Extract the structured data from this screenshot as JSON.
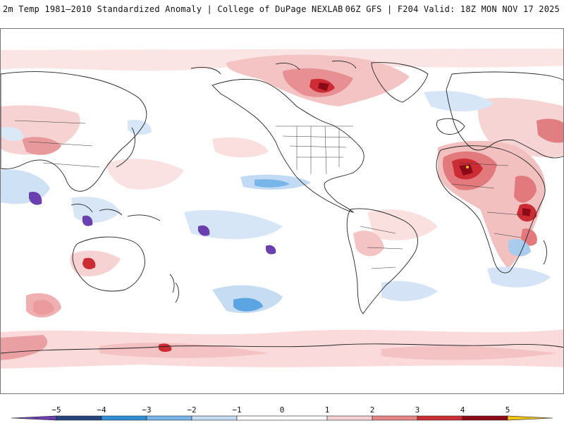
{
  "header": {
    "title_left": "2m Temp 1981–2010 Standardized Anomaly | College of DuPage NEXLAB",
    "title_right": "06Z GFS | F204 Valid: 18Z MON NOV 17 2025"
  },
  "map": {
    "projection": "global equirectangular, Pacific-centered",
    "variable": "2m temperature standardized anomaly"
  },
  "colorbar": {
    "ticks": [
      "−5",
      "−4",
      "−3",
      "−2",
      "−1",
      "0",
      "1",
      "2",
      "3",
      "4",
      "5"
    ],
    "range": [
      -6,
      6
    ],
    "bins": [
      {
        "from": -6,
        "to": -5,
        "color": "#6a3fb0"
      },
      {
        "from": -5,
        "to": -4,
        "color": "#25457f"
      },
      {
        "from": -4,
        "to": -3,
        "color": "#2f8fd9"
      },
      {
        "from": -3,
        "to": -2,
        "color": "#78b6ea"
      },
      {
        "from": -2,
        "to": -1,
        "color": "#c6dcf3"
      },
      {
        "from": -1,
        "to": 1,
        "color": "#ffffff"
      },
      {
        "from": 1,
        "to": 2,
        "color": "#f6d1d1"
      },
      {
        "from": 2,
        "to": 3,
        "color": "#e6888a"
      },
      {
        "from": 3,
        "to": 4,
        "color": "#cc2d35"
      },
      {
        "from": 4,
        "to": 5,
        "color": "#8c0a18"
      },
      {
        "from": 5,
        "to": 6,
        "color": "#f0c419"
      }
    ]
  },
  "colors": {
    "warm_light": "#f8d6d6",
    "warm_mid": "#e8898b",
    "warm_strong": "#cc2d35",
    "warm_extreme": "#8c0a18",
    "cool_light": "#cfe2f5",
    "cool_mid": "#78b6ea",
    "cool_strong": "#2f8fd9",
    "cool_extreme": "#6a3fb0",
    "coastline": "#222222"
  }
}
